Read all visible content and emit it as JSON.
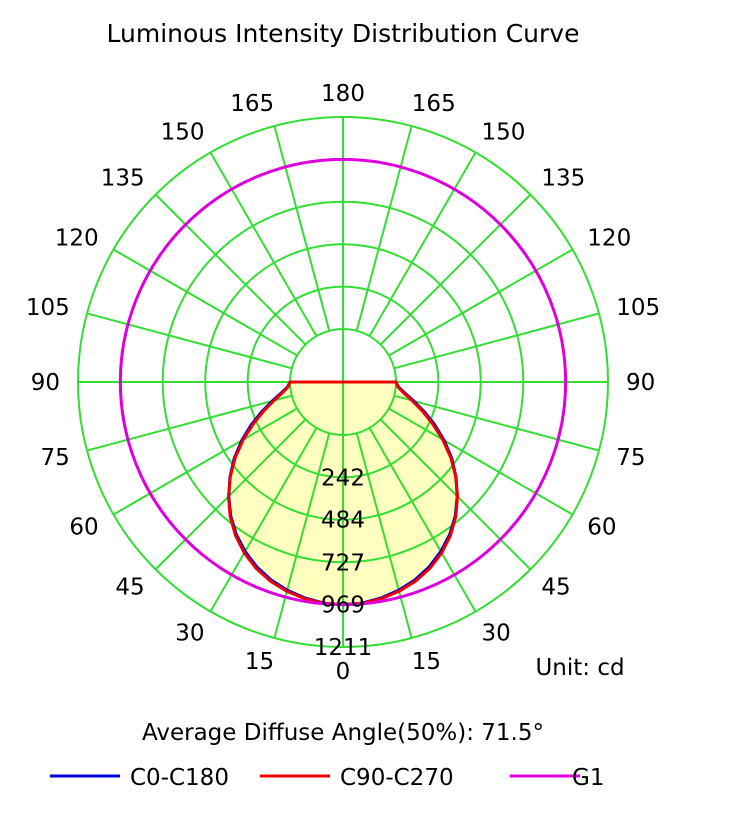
{
  "chart_data": {
    "type": "polar-line",
    "title": "Luminous Intensity Distribution Curve",
    "unit_label": "Unit: cd",
    "note": "Average Diffuse Angle(50%): 71.5°",
    "angle_tick_labels_left": [
      "0",
      "15",
      "30",
      "45",
      "60",
      "75",
      "90",
      "105",
      "120",
      "135",
      "150",
      "165",
      "180"
    ],
    "angle_tick_labels_right": [
      "15",
      "30",
      "45",
      "60",
      "75",
      "90",
      "105",
      "120",
      "135",
      "150",
      "165"
    ],
    "radial_ticks": [
      242,
      484,
      727,
      969,
      1211
    ],
    "radial_tick_labels": [
      "242",
      "484",
      "727",
      "969",
      "1211"
    ],
    "r_max": 1211,
    "grid": true,
    "fill_color": "#ffffc0",
    "grid_color": "#33dd33",
    "legend_position": "bottom",
    "series": [
      {
        "name": "C0-C180",
        "color": "#0000dd",
        "angles": [
          0,
          5,
          10,
          15,
          20,
          25,
          30,
          35,
          40,
          45,
          50,
          55,
          60,
          65,
          70,
          75,
          80,
          85,
          90
        ],
        "values": [
          969,
          965,
          950,
          928,
          900,
          862,
          815,
          760,
          695,
          620,
          540,
          455,
          365,
          275,
          190,
          115,
          55,
          15,
          0
        ]
      },
      {
        "name": "C90-C270",
        "color": "#ee0000",
        "angles": [
          0,
          5,
          10,
          15,
          20,
          25,
          30,
          35,
          40,
          45,
          50,
          55,
          60,
          65,
          70,
          75,
          80,
          85,
          90
        ],
        "values": [
          969,
          966,
          955,
          935,
          908,
          872,
          825,
          768,
          700,
          622,
          538,
          448,
          355,
          262,
          178,
          105,
          48,
          12,
          0
        ]
      },
      {
        "name": "G1",
        "color": "#dd00dd",
        "constant": 969
      }
    ]
  }
}
